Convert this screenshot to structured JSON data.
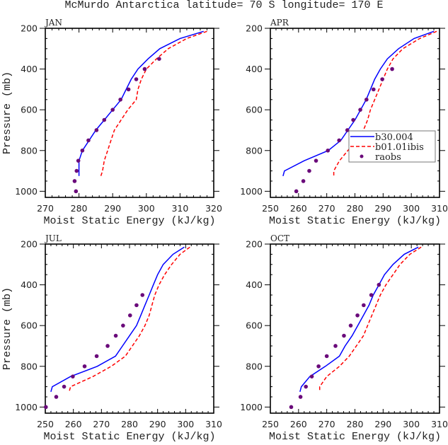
{
  "title": "McMurdo Antarctica  latitude= 70 S longitude= 170 E",
  "legend": {
    "placement": "inside APR panel, center-right",
    "entries": [
      {
        "label": "b30.004",
        "style": "solid",
        "color": "#0000ff"
      },
      {
        "label": "b01.01ibis",
        "style": "dashed",
        "color": "#ff0000"
      },
      {
        "label": "raobs",
        "style": "marker",
        "color": "#6a0a7a"
      }
    ]
  },
  "chart_data": [
    {
      "type": "line",
      "panel": "JAN",
      "title": "JAN",
      "xlabel": "Moist Static Energy (kJ/kg)",
      "ylabel": "Pressure (mb)",
      "xlim": [
        270,
        320
      ],
      "ylim": [
        1030,
        200
      ],
      "xticks": [
        270,
        280,
        290,
        300,
        310,
        320
      ],
      "yticks": [
        200,
        400,
        600,
        800,
        1000
      ],
      "series": [
        {
          "name": "b30.004",
          "p": [
            215,
            250,
            300,
            350,
            400,
            450,
            500,
            550,
            600,
            650,
            700,
            750,
            800,
            850,
            900,
            925
          ],
          "x": [
            317,
            310,
            304,
            300.5,
            297.5,
            295.5,
            294,
            292.5,
            290,
            287.5,
            285,
            283,
            281,
            280,
            280,
            280
          ]
        },
        {
          "name": "b01.01ibis",
          "p": [
            215,
            250,
            300,
            350,
            400,
            450,
            500,
            550,
            600,
            650,
            700,
            750,
            800,
            850,
            900,
            925
          ],
          "x": [
            318,
            312,
            306.5,
            303,
            300,
            298.5,
            297.5,
            297,
            294.5,
            292.5,
            290.5,
            289.5,
            288.5,
            287.5,
            287,
            286.5
          ]
        },
        {
          "name": "raobs",
          "p": [
            350,
            400,
            450,
            500,
            550,
            600,
            650,
            700,
            750,
            800,
            850,
            900,
            950,
            1000
          ],
          "x": [
            303.8,
            299.5,
            297,
            294.7,
            292.3,
            290,
            287.5,
            285.2,
            282.8,
            281,
            279.8,
            279.3,
            278.7,
            279.1
          ]
        }
      ]
    },
    {
      "type": "line",
      "panel": "APR",
      "title": "APR",
      "xlabel": "Moist Static Energy (kJ/kg)",
      "ylabel": "",
      "xlim": [
        250,
        310
      ],
      "ylim": [
        1030,
        200
      ],
      "xticks": [
        250,
        260,
        270,
        280,
        290,
        300,
        310
      ],
      "yticks": [
        200,
        400,
        600,
        800,
        1000
      ],
      "series": [
        {
          "name": "b30.004",
          "p": [
            215,
            250,
            300,
            350,
            400,
            450,
            500,
            550,
            600,
            650,
            700,
            750,
            800,
            850,
            900,
            925
          ],
          "x": [
            308,
            301,
            295.5,
            291.5,
            289,
            287,
            285.5,
            284,
            282,
            280,
            277.5,
            275,
            270.5,
            262,
            255,
            254.5
          ]
        },
        {
          "name": "b01.01ibis",
          "p": [
            215,
            250,
            300,
            350,
            400,
            450,
            500,
            550,
            600,
            650,
            700,
            750,
            800,
            850,
            900,
            925
          ],
          "x": [
            309,
            303,
            297,
            293.5,
            291.5,
            290,
            288.5,
            287,
            285.5,
            284.5,
            283,
            280.5,
            277.5,
            274.5,
            272.5,
            272.5
          ]
        },
        {
          "name": "raobs",
          "p": [
            400,
            450,
            500,
            550,
            600,
            650,
            700,
            750,
            800,
            850,
            900,
            950,
            1000
          ],
          "x": [
            293.2,
            289.7,
            286.6,
            284.1,
            281.9,
            279.4,
            277.3,
            274.4,
            270.4,
            266.2,
            263.8,
            261.7,
            259.2
          ]
        }
      ]
    },
    {
      "type": "line",
      "panel": "JUL",
      "title": "JUL",
      "xlabel": "Moist Static Energy (kJ/kg)",
      "ylabel": "Pressure (mb)",
      "xlim": [
        250,
        310
      ],
      "ylim": [
        1030,
        200
      ],
      "xticks": [
        250,
        260,
        270,
        280,
        290,
        300,
        310
      ],
      "yticks": [
        200,
        400,
        600,
        800,
        1000
      ],
      "series": [
        {
          "name": "b30.004",
          "p": [
            215,
            250,
            300,
            350,
            400,
            450,
            500,
            550,
            600,
            650,
            700,
            750,
            800,
            850,
            900,
            925
          ],
          "x": [
            299.5,
            295.5,
            292,
            290,
            288.5,
            287,
            285.5,
            284,
            282.5,
            280,
            277.5,
            275,
            268.5,
            259,
            252.5,
            252
          ]
        },
        {
          "name": "b01.01ibis",
          "p": [
            215,
            250,
            300,
            350,
            400,
            450,
            500,
            550,
            600,
            650,
            700,
            750,
            800,
            850,
            900,
            925
          ],
          "x": [
            301.5,
            298,
            295,
            292.5,
            290.5,
            289,
            288,
            287,
            285.5,
            283.5,
            281,
            278.5,
            273.5,
            267,
            259,
            258.5
          ]
        },
        {
          "name": "raobs",
          "p": [
            450,
            500,
            550,
            600,
            650,
            700,
            750,
            800,
            850,
            900,
            950,
            1000
          ],
          "x": [
            284.6,
            282.5,
            280.2,
            277.7,
            275.1,
            272.2,
            268.3,
            264,
            259.8,
            256.7,
            253.9,
            250.2
          ]
        }
      ]
    },
    {
      "type": "line",
      "panel": "OCT",
      "title": "OCT",
      "xlabel": "Moist Static Energy (kJ/kg)",
      "ylabel": "",
      "xlim": [
        250,
        310
      ],
      "ylim": [
        1030,
        200
      ],
      "xticks": [
        250,
        260,
        270,
        280,
        290,
        300,
        310
      ],
      "yticks": [
        200,
        400,
        600,
        800,
        1000
      ],
      "series": [
        {
          "name": "b30.004",
          "p": [
            215,
            250,
            300,
            350,
            400,
            450,
            500,
            550,
            600,
            650,
            700,
            750,
            800,
            850,
            900,
            925
          ],
          "x": [
            302.5,
            297.5,
            293.5,
            290.5,
            288.5,
            286.5,
            285,
            283,
            281,
            279,
            276.5,
            274.5,
            269.5,
            264,
            261,
            260.5
          ]
        },
        {
          "name": "b01.01ibis",
          "p": [
            215,
            250,
            300,
            350,
            400,
            450,
            500,
            550,
            600,
            650,
            700,
            750,
            800,
            850,
            900,
            925
          ],
          "x": [
            303.5,
            299.5,
            296,
            293.5,
            291,
            289,
            287.5,
            286,
            284.5,
            283,
            280.5,
            278,
            274.5,
            270,
            267.5,
            267.5
          ]
        },
        {
          "name": "raobs",
          "p": [
            400,
            450,
            500,
            550,
            600,
            650,
            700,
            750,
            800,
            850,
            900,
            950,
            1000
          ],
          "x": [
            288.5,
            285.8,
            283.1,
            280.9,
            278.5,
            276.1,
            273.1,
            270,
            267.1,
            264.7,
            262.6,
            260.7,
            257.4
          ]
        }
      ]
    }
  ]
}
